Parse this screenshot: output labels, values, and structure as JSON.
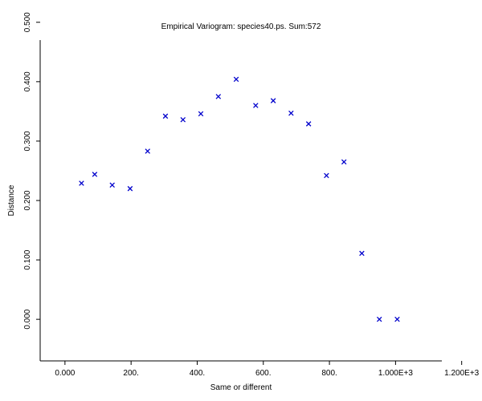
{
  "chart_data": {
    "type": "scatter",
    "title": "Empirical Variogram: species40.ps. Sum:572",
    "xlabel": "Same or different",
    "ylabel": "Distance",
    "xlim": [
      -75,
      1140
    ],
    "ylim": [
      -0.07,
      0.47
    ],
    "x_ticks": [
      {
        "value": 0,
        "label": "0.000"
      },
      {
        "value": 200,
        "label": "200."
      },
      {
        "value": 400,
        "label": "400."
      },
      {
        "value": 600,
        "label": "600."
      },
      {
        "value": 800,
        "label": "800."
      },
      {
        "value": 1000,
        "label": "1.000E+3"
      },
      {
        "value": 1200,
        "label": "1.200E+3"
      }
    ],
    "y_ticks": [
      {
        "value": 0.0,
        "label": "0.000"
      },
      {
        "value": 0.1,
        "label": "0.100"
      },
      {
        "value": 0.2,
        "label": "0.200"
      },
      {
        "value": 0.3,
        "label": "0.300"
      },
      {
        "value": 0.4,
        "label": "0.400"
      },
      {
        "value": 0.5,
        "label": "0.500"
      }
    ],
    "marker": "x",
    "marker_color": "#0000cc",
    "grid": false,
    "points": [
      {
        "x": 50,
        "y": 0.229
      },
      {
        "x": 90,
        "y": 0.244
      },
      {
        "x": 143,
        "y": 0.226
      },
      {
        "x": 197,
        "y": 0.22
      },
      {
        "x": 250,
        "y": 0.283
      },
      {
        "x": 304,
        "y": 0.342
      },
      {
        "x": 357,
        "y": 0.336
      },
      {
        "x": 411,
        "y": 0.346
      },
      {
        "x": 464,
        "y": 0.375
      },
      {
        "x": 518,
        "y": 0.404
      },
      {
        "x": 577,
        "y": 0.36
      },
      {
        "x": 630,
        "y": 0.368
      },
      {
        "x": 684,
        "y": 0.347
      },
      {
        "x": 737,
        "y": 0.329
      },
      {
        "x": 791,
        "y": 0.242
      },
      {
        "x": 844,
        "y": 0.265
      },
      {
        "x": 898,
        "y": 0.111
      },
      {
        "x": 951,
        "y": 0.0
      },
      {
        "x": 1005,
        "y": 0.0
      }
    ]
  }
}
